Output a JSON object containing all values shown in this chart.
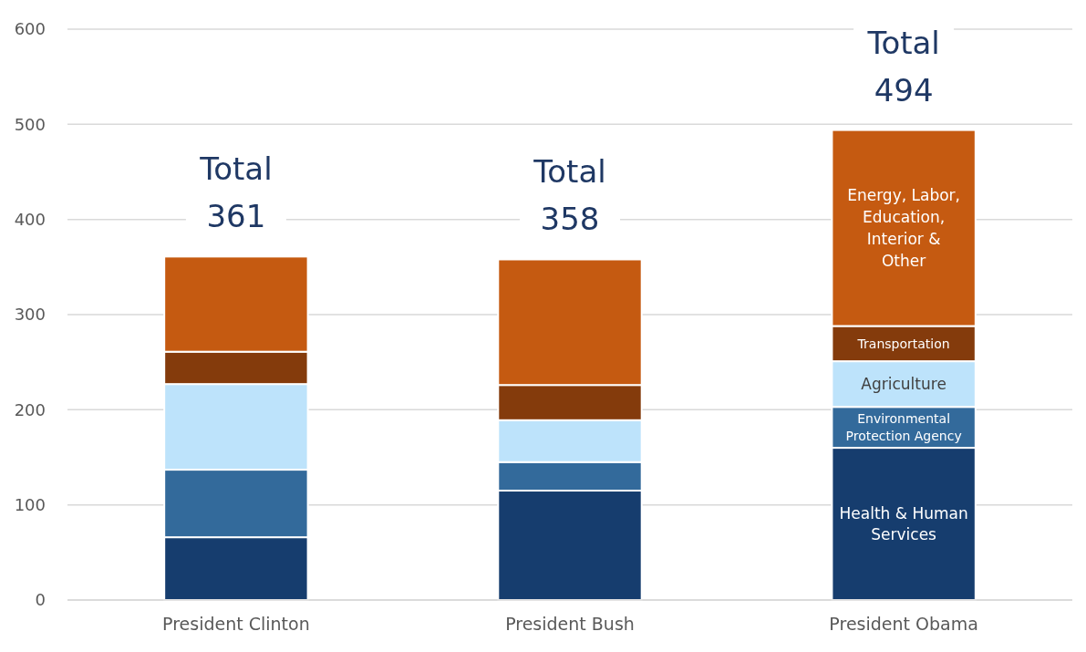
{
  "chart_data": {
    "type": "bar",
    "stacked": true,
    "categories": [
      "President Clinton",
      "President Bush",
      "President Obama"
    ],
    "series": [
      {
        "name": "Health & Human Services",
        "color": "#163d6e",
        "values": [
          66,
          115,
          160
        ]
      },
      {
        "name": "Environmental Protection Agency",
        "color": "#336a9b",
        "values": [
          71,
          30,
          43
        ]
      },
      {
        "name": "Agriculture",
        "color": "#bde3fb",
        "values": [
          90,
          44,
          48
        ]
      },
      {
        "name": "Transportation",
        "color": "#843b0c",
        "values": [
          34,
          37,
          37
        ]
      },
      {
        "name": "Energy, Labor, Education, Interior & Other",
        "color": "#c55a11",
        "values": [
          100,
          132,
          206
        ]
      }
    ],
    "totals": [
      "Total 361",
      "Total 358",
      "Total 494"
    ],
    "ylim": [
      0,
      600
    ],
    "yticks": [
      0,
      100,
      200,
      300,
      400,
      500,
      600
    ],
    "grid": "y"
  }
}
